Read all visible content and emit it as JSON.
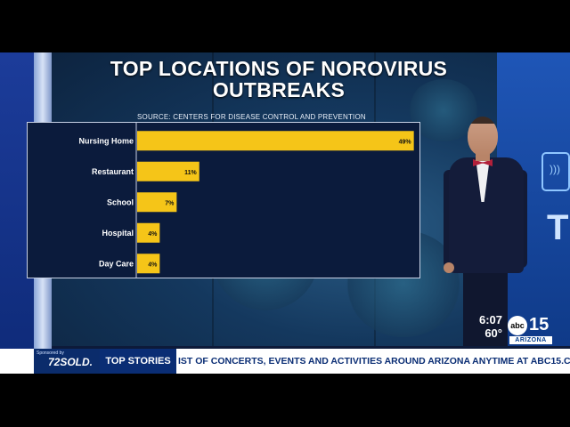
{
  "graphic": {
    "title": "TOP LOCATIONS OF NOROVIRUS OUTBREAKS",
    "source": "SOURCE: CENTERS FOR DISEASE CONTROL AND PREVENTION"
  },
  "chart_data": {
    "type": "bar",
    "orientation": "horizontal",
    "categories": [
      "Nursing Home",
      "Restaurant",
      "School",
      "Hospital",
      "Day Care"
    ],
    "values": [
      49,
      11,
      7,
      4,
      4
    ],
    "value_labels": [
      "49%",
      "11%",
      "7%",
      "4%",
      "4%"
    ],
    "xlim": [
      0,
      50
    ],
    "bar_color": "#f5c518"
  },
  "weather": {
    "time": "6:07",
    "temp": "60°"
  },
  "station_logo": {
    "abc": "abc",
    "number": "15",
    "region": "ARIZONA"
  },
  "ticker": {
    "sponsor_label": "Sponsored by",
    "sponsor_brand": "72SOLD.",
    "section": "TOP STORIES",
    "crawl": "IST OF CONCERTS, EVENTS AND ACTIVITIES AROUND ARIZONA ANYTIME AT ABC15.COM"
  }
}
